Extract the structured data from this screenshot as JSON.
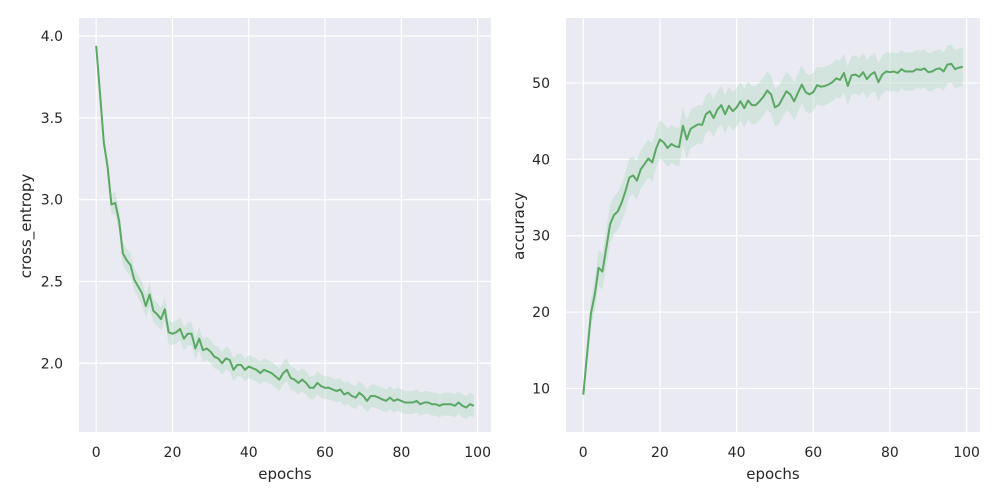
{
  "colors": {
    "background": "#ffffff",
    "plot_area": "#eaeaf2",
    "grid": "#ffffff",
    "line": "#5aa864",
    "band": "#b8dcc4"
  },
  "chart_data": [
    {
      "type": "line",
      "xlabel": "epochs",
      "ylabel": "cross_entropy",
      "xlim": [
        -4.5,
        103.5
      ],
      "ylim": [
        1.58,
        4.11
      ],
      "xticks": [
        0,
        20,
        40,
        60,
        80,
        100
      ],
      "xtick_labels": [
        "0",
        "20",
        "40",
        "60",
        "80",
        "100"
      ],
      "yticks": [
        2.0,
        2.5,
        3.0,
        3.5,
        4.0
      ],
      "ytick_labels": [
        "2.0",
        "2.5",
        "3.0",
        "3.5",
        "4.0"
      ],
      "grid": true,
      "series": [
        {
          "x": [
            0,
            1,
            2,
            3,
            4,
            5,
            6,
            7,
            8,
            9,
            10,
            11,
            12,
            13,
            14,
            15,
            16,
            17,
            18,
            19,
            20,
            21,
            22,
            23,
            24,
            25,
            26,
            27,
            28,
            29,
            30,
            31,
            32,
            33,
            34,
            35,
            36,
            37,
            38,
            39,
            40,
            41,
            42,
            43,
            44,
            45,
            46,
            47,
            48,
            49,
            50,
            51,
            52,
            53,
            54,
            55,
            56,
            57,
            58,
            59,
            60,
            61,
            62,
            63,
            64,
            65,
            66,
            67,
            68,
            69,
            70,
            71,
            72,
            73,
            74,
            75,
            76,
            77,
            78,
            79,
            80,
            81,
            82,
            83,
            84,
            85,
            86,
            87,
            88,
            89,
            90,
            91,
            92,
            93,
            94,
            95,
            96,
            97,
            98,
            99
          ],
          "y": [
            3.94,
            3.65,
            3.35,
            3.2,
            2.97,
            2.98,
            2.87,
            2.67,
            2.63,
            2.6,
            2.51,
            2.47,
            2.43,
            2.35,
            2.42,
            2.32,
            2.3,
            2.27,
            2.33,
            2.19,
            2.18,
            2.19,
            2.21,
            2.15,
            2.18,
            2.18,
            2.09,
            2.15,
            2.08,
            2.09,
            2.07,
            2.04,
            2.03,
            2.0,
            2.03,
            2.02,
            1.96,
            1.99,
            1.99,
            1.96,
            1.98,
            1.97,
            1.96,
            1.94,
            1.96,
            1.95,
            1.94,
            1.92,
            1.9,
            1.94,
            1.96,
            1.91,
            1.9,
            1.88,
            1.9,
            1.88,
            1.85,
            1.85,
            1.88,
            1.86,
            1.85,
            1.85,
            1.84,
            1.83,
            1.84,
            1.81,
            1.82,
            1.8,
            1.79,
            1.82,
            1.8,
            1.77,
            1.8,
            1.8,
            1.79,
            1.78,
            1.77,
            1.79,
            1.77,
            1.78,
            1.77,
            1.76,
            1.76,
            1.76,
            1.77,
            1.75,
            1.76,
            1.76,
            1.75,
            1.75,
            1.74,
            1.75,
            1.75,
            1.75,
            1.74,
            1.76,
            1.74,
            1.73,
            1.75,
            1.74
          ],
          "band": [
            0.02,
            0.03,
            0.04,
            0.05,
            0.06,
            0.07,
            0.07,
            0.07,
            0.07,
            0.07,
            0.07,
            0.07,
            0.07,
            0.07,
            0.07,
            0.07,
            0.07,
            0.07,
            0.07,
            0.07,
            0.07,
            0.07,
            0.07,
            0.07,
            0.07,
            0.07,
            0.07,
            0.07,
            0.07,
            0.07,
            0.07,
            0.07,
            0.07,
            0.07,
            0.07,
            0.07,
            0.07,
            0.07,
            0.07,
            0.07,
            0.07,
            0.07,
            0.07,
            0.07,
            0.07,
            0.07,
            0.07,
            0.07,
            0.07,
            0.07,
            0.07,
            0.07,
            0.07,
            0.07,
            0.07,
            0.07,
            0.07,
            0.07,
            0.07,
            0.07,
            0.07,
            0.07,
            0.07,
            0.07,
            0.07,
            0.07,
            0.07,
            0.07,
            0.07,
            0.07,
            0.07,
            0.07,
            0.07,
            0.07,
            0.07,
            0.07,
            0.07,
            0.07,
            0.07,
            0.07,
            0.07,
            0.07,
            0.07,
            0.07,
            0.07,
            0.07,
            0.07,
            0.07,
            0.07,
            0.07,
            0.07,
            0.07,
            0.07,
            0.07,
            0.07,
            0.07,
            0.07,
            0.07,
            0.07,
            0.07
          ]
        }
      ]
    },
    {
      "type": "line",
      "xlabel": "epochs",
      "ylabel": "accuracy",
      "xlim": [
        -4.5,
        103.5
      ],
      "ylim": [
        4.3,
        58.5
      ],
      "xticks": [
        0,
        20,
        40,
        60,
        80,
        100
      ],
      "xtick_labels": [
        "0",
        "20",
        "40",
        "60",
        "80",
        "100"
      ],
      "yticks": [
        10,
        20,
        30,
        40,
        50
      ],
      "ytick_labels": [
        "10",
        "20",
        "30",
        "40",
        "50"
      ],
      "grid": true,
      "series": [
        {
          "x": [
            0,
            1,
            2,
            3,
            4,
            5,
            6,
            7,
            8,
            9,
            10,
            11,
            12,
            13,
            14,
            15,
            16,
            17,
            18,
            19,
            20,
            21,
            22,
            23,
            24,
            25,
            26,
            27,
            28,
            29,
            30,
            31,
            32,
            33,
            34,
            35,
            36,
            37,
            38,
            39,
            40,
            41,
            42,
            43,
            44,
            45,
            46,
            47,
            48,
            49,
            50,
            51,
            52,
            53,
            54,
            55,
            56,
            57,
            58,
            59,
            60,
            61,
            62,
            63,
            64,
            65,
            66,
            67,
            68,
            69,
            70,
            71,
            72,
            73,
            74,
            75,
            76,
            77,
            78,
            79,
            80,
            81,
            82,
            83,
            84,
            85,
            86,
            87,
            88,
            89,
            90,
            91,
            92,
            93,
            94,
            95,
            96,
            97,
            98,
            99
          ],
          "y": [
            9.2,
            14.5,
            19.8,
            22.3,
            25.8,
            25.3,
            28.4,
            31.5,
            32.7,
            33.2,
            34.3,
            35.8,
            37.6,
            37.9,
            37.2,
            38.7,
            39.4,
            40.1,
            39.6,
            41.4,
            42.6,
            42.2,
            41.5,
            42.0,
            41.7,
            41.6,
            44.4,
            42.6,
            44.0,
            44.3,
            44.6,
            44.5,
            45.9,
            46.3,
            45.4,
            46.5,
            47.1,
            45.9,
            47.0,
            46.3,
            46.8,
            47.6,
            46.7,
            47.7,
            47.1,
            47.1,
            47.6,
            48.2,
            49.0,
            48.5,
            46.8,
            47.1,
            48.0,
            48.9,
            48.5,
            47.6,
            48.7,
            49.8,
            48.8,
            48.5,
            48.8,
            49.7,
            49.5,
            49.6,
            49.8,
            50.1,
            50.6,
            50.4,
            51.3,
            49.6,
            51.0,
            51.1,
            50.8,
            51.4,
            50.5,
            51.1,
            51.4,
            50.1,
            51.1,
            51.5,
            51.4,
            51.5,
            51.3,
            51.8,
            51.5,
            51.5,
            51.5,
            51.8,
            51.7,
            51.9,
            51.4,
            51.5,
            51.8,
            51.9,
            51.5,
            52.4,
            52.5,
            51.8,
            52.0,
            52.1
          ],
          "band": [
            1.0,
            1.4,
            1.8,
            2.1,
            2.3,
            2.4,
            2.5,
            2.5,
            2.5,
            2.5,
            2.5,
            2.5,
            2.5,
            2.5,
            2.5,
            2.5,
            2.5,
            2.5,
            2.5,
            2.5,
            2.5,
            2.5,
            2.5,
            2.5,
            2.5,
            2.5,
            2.5,
            2.5,
            2.5,
            2.5,
            2.5,
            2.5,
            2.5,
            2.5,
            2.5,
            2.5,
            2.5,
            2.5,
            2.5,
            2.5,
            2.5,
            2.5,
            2.5,
            2.5,
            2.5,
            2.5,
            2.5,
            2.5,
            2.5,
            2.5,
            2.5,
            2.5,
            2.5,
            2.5,
            2.5,
            2.5,
            2.5,
            2.5,
            2.5,
            2.5,
            2.5,
            2.5,
            2.5,
            2.5,
            2.5,
            2.5,
            2.5,
            2.5,
            2.5,
            2.5,
            2.5,
            2.5,
            2.5,
            2.5,
            2.5,
            2.5,
            2.5,
            2.5,
            2.5,
            2.5,
            2.5,
            2.5,
            2.5,
            2.5,
            2.5,
            2.5,
            2.5,
            2.5,
            2.5,
            2.5,
            2.5,
            2.5,
            2.5,
            2.5,
            2.5,
            2.5,
            2.5,
            2.5,
            2.5,
            2.5
          ]
        }
      ]
    }
  ]
}
